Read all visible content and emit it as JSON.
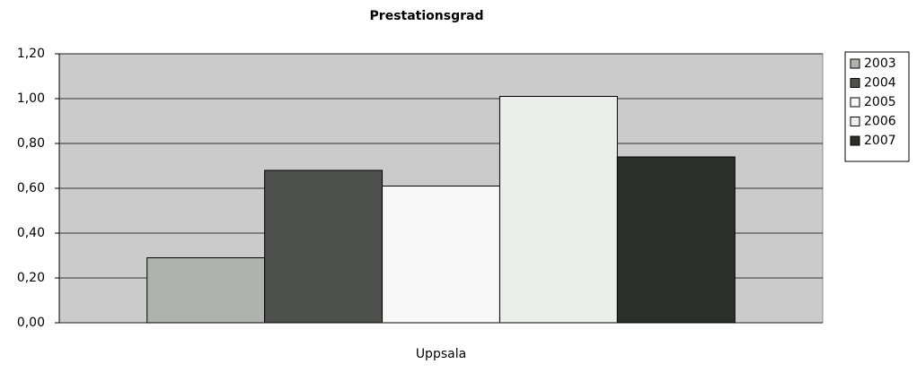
{
  "chart_data": {
    "type": "bar",
    "title": "Prestationsgrad",
    "categories": [
      "Uppsala"
    ],
    "series": [
      {
        "name": "2003",
        "color": "#b0b2b0",
        "values": [
          0.29
        ]
      },
      {
        "name": "2004",
        "color": "#4e504e",
        "values": [
          0.68
        ]
      },
      {
        "name": "2005",
        "color": "#f8f8f8",
        "values": [
          0.61
        ]
      },
      {
        "name": "2006",
        "color": "#eceeec",
        "values": [
          1.01
        ]
      },
      {
        "name": "2007",
        "color": "#2c2e2c",
        "values": [
          0.74
        ]
      }
    ],
    "ylim": [
      0,
      1.2
    ],
    "yticks": [
      {
        "value": 0,
        "label": "0,00"
      },
      {
        "value": 0.2,
        "label": "0,20"
      },
      {
        "value": 0.4,
        "label": "0,40"
      },
      {
        "value": 0.6,
        "label": "0,60"
      },
      {
        "value": 0.8,
        "label": "0,80"
      },
      {
        "value": 1,
        "label": "1,00"
      },
      {
        "value": 1.2,
        "label": "1,20"
      }
    ],
    "grid": true,
    "legend": "right"
  }
}
